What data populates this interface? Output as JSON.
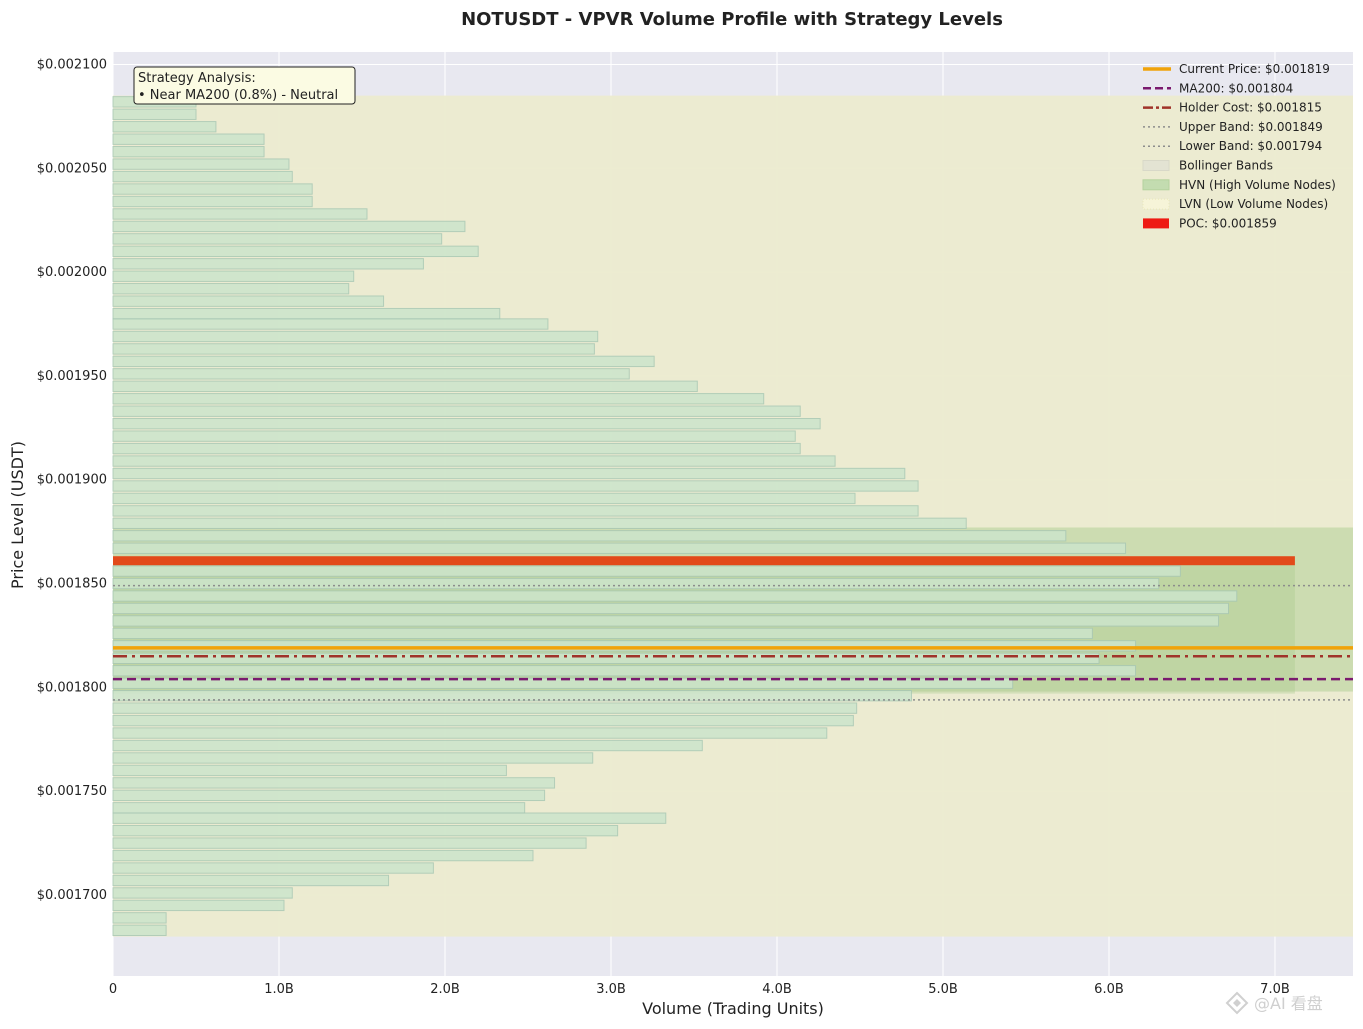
{
  "colors": {
    "plot_bg": "#e8e8f0",
    "bollinger": "#ecebcf",
    "hvn": "#a6c98a",
    "bar_fill": "#cce5cc",
    "bar_edge": "#a8c8b4",
    "poc": "#e24a1a",
    "current_price": "#f0a30a",
    "ma200": "#7a1a6e",
    "holder_cost": "#a0332a",
    "band_line": "#8c8c8c"
  },
  "chart_data": {
    "type": "bar",
    "orientation": "horizontal",
    "title": "NOTUSDT - VPVR Volume Profile with Strategy Levels",
    "xlabel": "Volume (Trading Units)",
    "ylabel": "Price Level (USDT)",
    "xlim": [
      0,
      7.47
    ],
    "ylim": [
      0.001661,
      0.002106
    ],
    "x_unit": "billions",
    "xticks": [
      {
        "value": 0,
        "label": "0"
      },
      {
        "value": 1,
        "label": "1.0B"
      },
      {
        "value": 2,
        "label": "2.0B"
      },
      {
        "value": 3,
        "label": "3.0B"
      },
      {
        "value": 4,
        "label": "4.0B"
      },
      {
        "value": 5,
        "label": "5.0B"
      },
      {
        "value": 6,
        "label": "6.0B"
      },
      {
        "value": 7,
        "label": "7.0B"
      }
    ],
    "yticks": [
      {
        "value": 0.0017,
        "label": "$0.001700"
      },
      {
        "value": 0.00175,
        "label": "$0.001750"
      },
      {
        "value": 0.0018,
        "label": "$0.001800"
      },
      {
        "value": 0.00185,
        "label": "$0.001850"
      },
      {
        "value": 0.0019,
        "label": "$0.001900"
      },
      {
        "value": 0.00195,
        "label": "$0.001950"
      },
      {
        "value": 0.002,
        "label": "$0.002000"
      },
      {
        "value": 0.00205,
        "label": "$0.002050"
      },
      {
        "value": 0.0021,
        "label": "$0.002100"
      }
    ],
    "bin_size": 5.934e-06,
    "price_bins": [
      0.001683,
      0.001689,
      0.001695,
      0.001701,
      0.001707,
      0.001713,
      0.001719,
      0.001725,
      0.001731,
      0.001737,
      0.001742,
      0.001748,
      0.001754,
      0.00176,
      0.001766,
      0.001772,
      0.001778,
      0.001784,
      0.00179,
      0.001796,
      0.001802,
      0.001808,
      0.001814,
      0.00182,
      0.001826,
      0.001832,
      0.001838,
      0.001844,
      0.00185,
      0.001856,
      0.001861,
      0.001867,
      0.001873,
      0.001879,
      0.001885,
      0.001891,
      0.001897,
      0.001903,
      0.001909,
      0.001915,
      0.001921,
      0.001927,
      0.001933,
      0.001939,
      0.001945,
      0.001951,
      0.001957,
      0.001963,
      0.001969,
      0.001975,
      0.00198,
      0.001986,
      0.001992,
      0.001998,
      0.002004,
      0.00201,
      0.002016,
      0.002022,
      0.002028,
      0.002034,
      0.00204,
      0.002046,
      0.002052,
      0.002058,
      0.002064,
      0.00207,
      0.002076,
      0.002082
    ],
    "volumes": [
      0.32,
      0.32,
      1.03,
      1.08,
      1.66,
      1.93,
      2.53,
      2.85,
      3.04,
      3.33,
      2.48,
      2.6,
      2.66,
      2.37,
      2.89,
      3.55,
      4.3,
      4.46,
      4.48,
      4.81,
      5.42,
      6.16,
      5.94,
      6.16,
      5.9,
      6.66,
      6.72,
      6.77,
      6.3,
      6.43,
      7.12,
      6.1,
      5.74,
      5.14,
      4.85,
      4.47,
      4.85,
      4.77,
      4.35,
      4.14,
      4.11,
      4.26,
      4.14,
      3.92,
      3.52,
      3.11,
      3.26,
      2.9,
      2.92,
      2.62,
      2.33,
      1.63,
      1.42,
      1.45,
      1.87,
      2.2,
      1.98,
      2.12,
      1.53,
      1.2,
      1.2,
      1.08,
      1.06,
      0.91,
      0.91,
      0.62,
      0.5,
      0.5
    ],
    "poc_index": 30,
    "levels": {
      "current_price": 0.001819,
      "ma200": 0.001804,
      "holder_cost": 0.001815,
      "upper_band": 0.001849,
      "lower_band": 0.001794,
      "poc": 0.001859
    },
    "zones": {
      "bollinger": [
        0.00168,
        0.002085
      ],
      "hvn": [
        0.001798,
        0.001877
      ],
      "hvn_inner": [
        0.001797,
        0.00186
      ]
    },
    "legend_position": "top-right",
    "legend": [
      {
        "key": "current_price",
        "label": "Current Price: $0.001819",
        "style": "solid-thick"
      },
      {
        "key": "ma200",
        "label": "MA200: $0.001804",
        "style": "dashed"
      },
      {
        "key": "holder_cost",
        "label": "Holder Cost: $0.001815",
        "style": "dashdot"
      },
      {
        "key": "upper_band",
        "label": "Upper Band: $0.001849",
        "style": "dotted"
      },
      {
        "key": "lower_band",
        "label": "Lower Band: $0.001794",
        "style": "dotted"
      },
      {
        "key": "bollinger",
        "label": "Bollinger Bands",
        "style": "patch"
      },
      {
        "key": "hvn",
        "label": "HVN (High Volume Nodes)",
        "style": "patch"
      },
      {
        "key": "lvn",
        "label": "LVN (Low Volume Nodes)",
        "style": "patch-dotted"
      },
      {
        "key": "poc",
        "label": "POC: $0.001859",
        "style": "patch-red"
      }
    ],
    "annotation": {
      "title": "Strategy Analysis:",
      "line": "• Near MA200 (0.8%) - Neutral"
    },
    "grid": true
  },
  "watermark": "@AI 看盘"
}
